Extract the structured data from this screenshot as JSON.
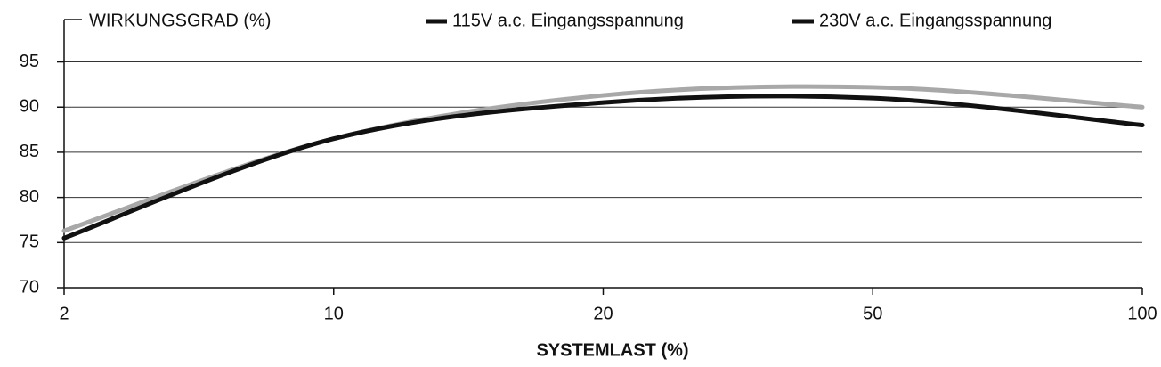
{
  "chart_data": {
    "type": "line",
    "y_label": "WIRKUNGSGRAD (%)",
    "x_label": "SYSTEMLAST (%)",
    "categories": [
      "2",
      "10",
      "20",
      "50",
      "100"
    ],
    "series": [
      {
        "name": "115V a.c. Eingangsspannung",
        "color": "#111111",
        "values": [
          75.5,
          86.5,
          90.5,
          91,
          88
        ]
      },
      {
        "name": "230V a.c. Eingangsspannung",
        "color": "#a8a8a8",
        "values": [
          76.3,
          86.5,
          91.3,
          92.2,
          90
        ]
      }
    ],
    "legend_color": "#111111",
    "ylim": [
      70,
      99
    ],
    "yticks": [
      70,
      75,
      80,
      85,
      90,
      95
    ],
    "grid": true
  }
}
